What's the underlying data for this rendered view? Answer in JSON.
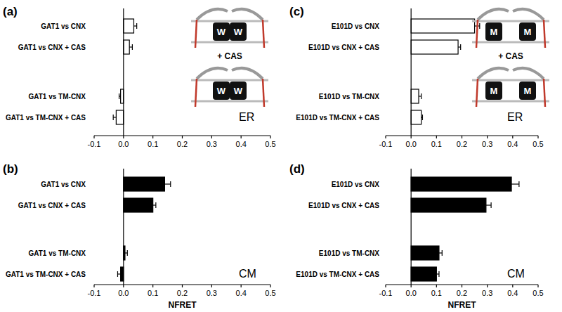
{
  "chart_data": [
    {
      "type": "bar",
      "orientation": "horizontal",
      "title": "(a)",
      "annotations": [
        "ER"
      ],
      "inset": {
        "labels": [
          "W",
          "W",
          "W",
          "W"
        ],
        "note": "+ CAS"
      },
      "categories": [
        "GAT1 vs CNX",
        "GAT1 vs CNX + CAS",
        "GAT1 vs TM-CNX",
        "GAT1 vs TM-CNX + CAS"
      ],
      "values": [
        0.035,
        0.02,
        -0.01,
        -0.025
      ],
      "errors": [
        0.01,
        0.01,
        0.005,
        0.01
      ],
      "color": "#ffffff",
      "xlim": [
        -0.1,
        0.5
      ],
      "xticks": [
        -0.1,
        {
          "value": 0,
          "label": "0.0"
        },
        0.1,
        0.2,
        0.3,
        0.4,
        0.5
      ],
      "grid": false
    },
    {
      "type": "bar",
      "orientation": "horizontal",
      "title": "(b)",
      "annotations": [
        "CM"
      ],
      "x_label": "NFRET",
      "categories": [
        "GAT1 vs CNX",
        "GAT1 vs CNX + CAS",
        "GAT1 vs TM-CNX",
        "GAT1 vs TM-CNX + CAS"
      ],
      "values": [
        0.14,
        0.1,
        0.005,
        -0.01
      ],
      "errors": [
        0.02,
        0.01,
        0.008,
        0.01
      ],
      "color": "#000000",
      "xlim": [
        -0.1,
        0.5
      ],
      "xticks": [
        -0.1,
        {
          "value": 0,
          "label": "0.0"
        },
        0.1,
        0.2,
        0.3,
        0.4,
        0.5
      ],
      "grid": false
    },
    {
      "type": "bar",
      "orientation": "horizontal",
      "title": "(c)",
      "annotations": [
        "ER"
      ],
      "inset": {
        "labels": [
          "M",
          "M",
          "M",
          "M"
        ],
        "note": "+ CAS"
      },
      "categories": [
        "E101D vs CNX",
        "E101D vs CNX + CAS",
        "E101D vs TM-CNX",
        "E101D vs TM-CNX + CAS"
      ],
      "values": [
        0.25,
        0.185,
        0.03,
        0.04
      ],
      "errors": [
        0.02,
        0.01,
        0.01,
        0.005
      ],
      "color": "#ffffff",
      "xlim": [
        -0.1,
        0.5
      ],
      "xticks": [
        -0.1,
        {
          "value": 0,
          "label": "0.0"
        },
        0.1,
        0.2,
        0.3,
        0.4,
        0.5
      ],
      "grid": false
    },
    {
      "type": "bar",
      "orientation": "horizontal",
      "title": "(d)",
      "annotations": [
        "CM"
      ],
      "x_label": "NFRET",
      "categories": [
        "E101D vs CNX",
        "E101D vs CNX + CAS",
        "E101D vs TM-CNX",
        "E101D vs TM-CNX + CAS"
      ],
      "values": [
        0.395,
        0.295,
        0.11,
        0.1
      ],
      "errors": [
        0.03,
        0.02,
        0.012,
        0.01
      ],
      "color": "#000000",
      "xlim": [
        -0.1,
        0.5
      ],
      "xticks": [
        -0.1,
        {
          "value": 0,
          "label": "0.0"
        },
        0.1,
        0.2,
        0.3,
        0.4,
        0.5
      ],
      "grid": false
    }
  ]
}
